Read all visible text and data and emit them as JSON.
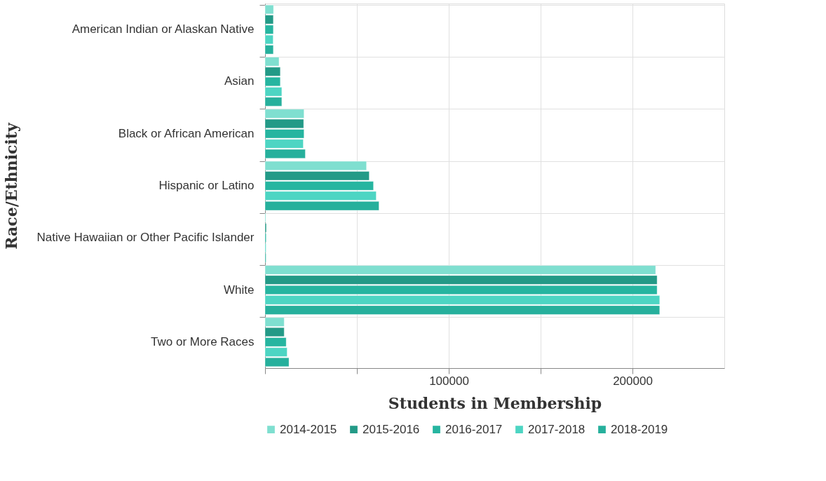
{
  "chart_data": {
    "type": "bar",
    "orientation": "horizontal",
    "xlabel": "Students in Membership",
    "ylabel": "Race/Ethnicity",
    "categories": [
      "American Indian or Alaskan Native",
      "Asian",
      "Black or African American",
      "Hispanic or Latino",
      "Native Hawaiian or Other Pacific Islander",
      "White",
      "Two or More Races"
    ],
    "series": [
      {
        "name": "2014-2015",
        "color": "#7fdfd0",
        "values": [
          4600,
          7600,
          21200,
          55200,
          400,
          212600,
          10400
        ]
      },
      {
        "name": "2015-2016",
        "color": "#239a87",
        "values": [
          4500,
          8300,
          21000,
          56700,
          700,
          213400,
          10400
        ]
      },
      {
        "name": "2016-2017",
        "color": "#26b5a0",
        "values": [
          4500,
          8300,
          21200,
          59000,
          600,
          213400,
          11500
        ]
      },
      {
        "name": "2017-2018",
        "color": "#4dd5c3",
        "values": [
          4400,
          9100,
          20800,
          60500,
          500,
          214800,
          12000
        ]
      },
      {
        "name": "2018-2019",
        "color": "#26b09c",
        "values": [
          4500,
          9100,
          21900,
          62000,
          500,
          214800,
          13000
        ]
      }
    ],
    "xlim": [
      0,
      250000
    ],
    "xticks": [
      {
        "value": 0,
        "label": null
      },
      {
        "value": 50000,
        "label": null
      },
      100000,
      {
        "value": 150000,
        "label": null
      },
      200000
    ],
    "grid": true,
    "legend": "bottom"
  }
}
